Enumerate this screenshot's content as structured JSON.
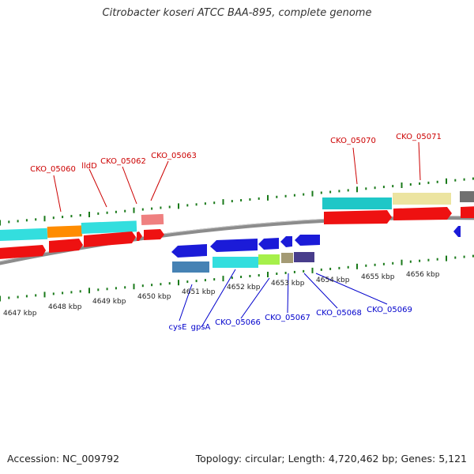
{
  "title": "Citrobacter koseri ATCC BAA-895, complete genome",
  "footer": {
    "accession": "Accession: NC_009792",
    "summary": "Topology: circular; Length: 4,720,462 bp; Genes: 5,121"
  },
  "colors": {
    "top_label": "#cc0000",
    "bottom_label": "#0000cc",
    "tick": "#1a7a1a",
    "axis_label": "#222222",
    "backbone": "#8c8c8c"
  },
  "ruler_labels": [
    "4647 kbp",
    "4648 kbp",
    "4649 kbp",
    "4650 kbp",
    "4651 kbp",
    "4652 kbp",
    "4653 kbp",
    "4654 kbp",
    "4655 kbp",
    "4656 kbp"
  ],
  "top_labels": [
    "CKO_05060",
    "lldD",
    "CKO_05062",
    "CKO_05063",
    "CKO_05070",
    "CKO_05071"
  ],
  "bottom_labels": [
    "cysE",
    "gpsA",
    "CKO_05066",
    "CKO_05067",
    "CKO_05068",
    "CKO_05069"
  ]
}
